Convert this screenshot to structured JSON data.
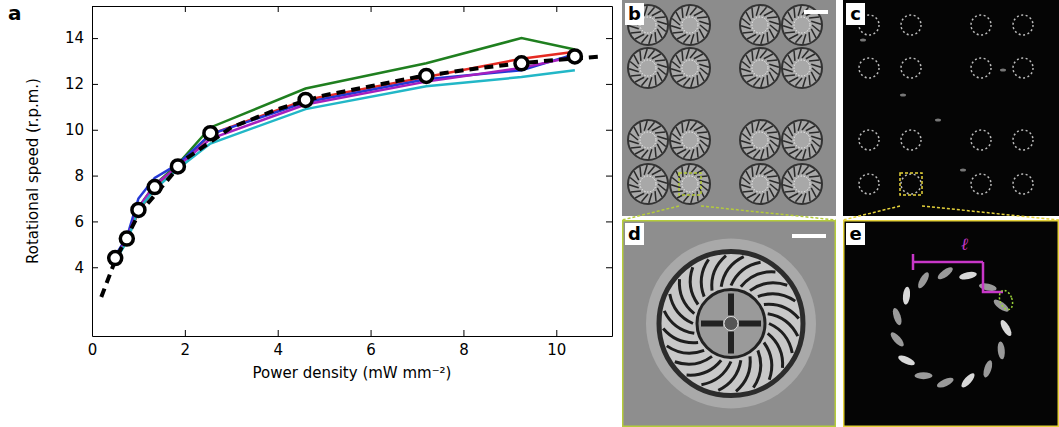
{
  "chart_data": {
    "type": "line",
    "panel_label": "a",
    "x_label": "Power density (mW mm⁻²)",
    "y_label": "Rotational speed (r.p.m.)",
    "xlim": [
      0,
      11.2
    ],
    "ylim": [
      1.0,
      15.4
    ],
    "xticks": [
      0,
      2,
      4,
      6,
      8,
      10
    ],
    "yticks": [
      4,
      6,
      8,
      10,
      12,
      14
    ],
    "grid": false,
    "x": [
      0.5,
      0.75,
      1.0,
      1.35,
      1.85,
      2.55,
      4.6,
      7.2,
      9.25,
      10.4
    ],
    "series": [
      {
        "color": "#1f7f1f",
        "type": "line",
        "values": [
          4.4,
          5.3,
          6.6,
          7.6,
          8.5,
          10.1,
          11.8,
          12.9,
          14.0,
          13.5
        ]
      },
      {
        "color": "#e52a22",
        "type": "line",
        "values": [
          4.4,
          5.2,
          6.4,
          7.5,
          8.4,
          9.8,
          11.3,
          12.3,
          13.1,
          13.4
        ]
      },
      {
        "color": "#2438d6",
        "type": "line",
        "values": [
          4.5,
          5.3,
          7.0,
          7.9,
          8.5,
          9.8,
          11.2,
          12.2,
          12.6,
          13.3
        ]
      },
      {
        "color": "#a51fbf",
        "type": "line",
        "values": [
          4.4,
          5.2,
          6.6,
          7.6,
          8.4,
          9.6,
          11.1,
          12.1,
          12.7,
          13.2
        ]
      },
      {
        "color": "#22b7c7",
        "type": "line",
        "values": [
          4.3,
          5.1,
          6.5,
          7.4,
          8.3,
          9.4,
          10.9,
          11.9,
          12.3,
          12.6
        ]
      },
      {
        "color": "#000000",
        "type": "line",
        "line_style": "dashed",
        "x": [
          0.2,
          0.5,
          1,
          2,
          3,
          4,
          5,
          6,
          7,
          8,
          9,
          10,
          11
        ],
        "values": [
          2.7,
          4.3,
          6.3,
          8.7,
          10.1,
          10.9,
          11.5,
          11.9,
          12.3,
          12.6,
          12.85,
          13.05,
          13.2
        ]
      },
      {
        "color": "#000000",
        "type": "scatter",
        "marker": "circle",
        "values": [
          4.4,
          5.25,
          6.5,
          7.5,
          8.4,
          9.85,
          11.3,
          12.35,
          12.9,
          13.2
        ]
      }
    ]
  },
  "images": [
    {
      "label": "b"
    },
    {
      "label": "c"
    },
    {
      "label": "d"
    },
    {
      "label": "e",
      "annotation": "ℓ"
    }
  ]
}
